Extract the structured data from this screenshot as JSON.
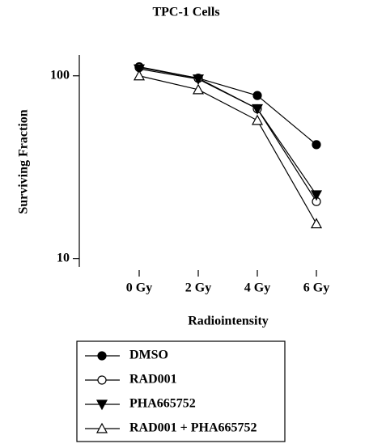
{
  "chart_data": {
    "type": "line",
    "title": "TPC-1 Cells",
    "xlabel": "Radiointensity",
    "ylabel": "Surviving Fraction",
    "categories": [
      "0 Gy",
      "2 Gy",
      "4 Gy",
      "6 Gy"
    ],
    "yscale": "log",
    "ylim": [
      9,
      130
    ],
    "yticks": [
      10,
      100
    ],
    "series": [
      {
        "name": "DMSO",
        "color": "#000000",
        "marker": "filled-circle",
        "values": [
          112,
          97,
          78,
          42
        ]
      },
      {
        "name": "RAD001",
        "color": "#000000",
        "marker": "open-circle",
        "values": [
          111,
          97,
          66,
          20.5
        ]
      },
      {
        "name": "PHA665752",
        "color": "#000000",
        "marker": "filled-triangle-down",
        "values": [
          109,
          96,
          66,
          22.3
        ]
      },
      {
        "name": "RAD001 + PHA665752",
        "color": "#000000",
        "marker": "open-triangle-up",
        "values": [
          100,
          84,
          57,
          15.5
        ]
      }
    ]
  }
}
